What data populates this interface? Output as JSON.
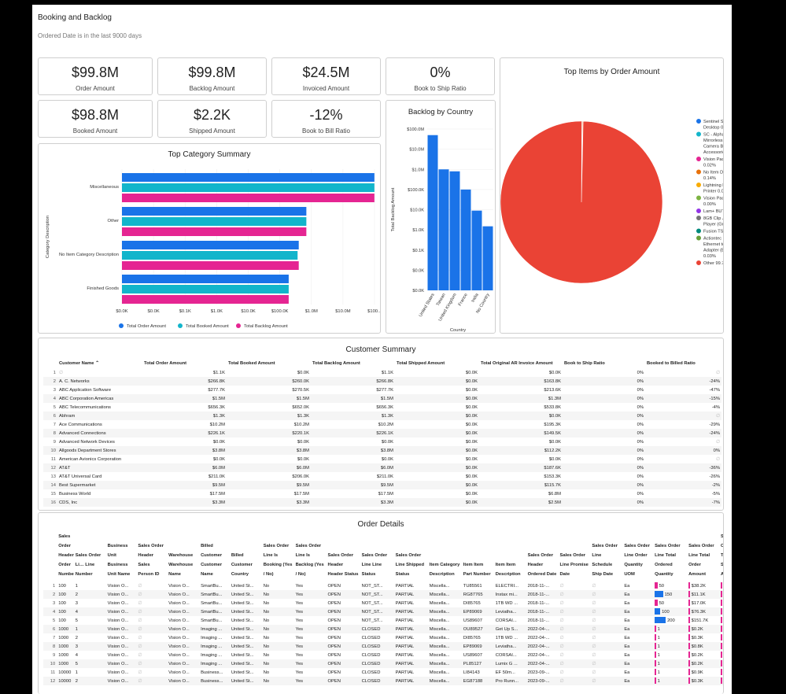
{
  "page": {
    "title": "Booking and Backlog",
    "subtitle": "Ordered Date is in the last 9000 days"
  },
  "kpis": [
    {
      "value": "$99.8M",
      "label": "Order Amount"
    },
    {
      "value": "$99.8M",
      "label": "Backlog Amount"
    },
    {
      "value": "$24.5M",
      "label": "Invoiced Amount"
    },
    {
      "value": "0%",
      "label": "Book to Ship Ratio"
    },
    {
      "value": "$98.8M",
      "label": "Booked Amount"
    },
    {
      "value": "$2.2K",
      "label": "Shipped Amount"
    },
    {
      "value": "-12%",
      "label": "Book to Bill Ratio"
    }
  ],
  "colors": {
    "order": "#1a73e8",
    "booked": "#12b5cb",
    "backlog": "#e52592",
    "pie_other": "#ea4335"
  },
  "chart_data": [
    {
      "type": "bar",
      "title": "Top Category Summary",
      "orientation": "horizontal",
      "ylabel": "Category Description",
      "xscale": "log",
      "categories": [
        "Miscellaneous",
        "Other",
        "No Item Category Description",
        "Finished Goods"
      ],
      "series": [
        {
          "name": "Total Order Amount",
          "values": [
            99000000,
            200000,
            100000,
            40000
          ]
        },
        {
          "name": "Total Booked Amount",
          "values": [
            99000000,
            200000,
            90000,
            40000
          ]
        },
        {
          "name": "Total Backlog Amount",
          "values": [
            99000000,
            200000,
            100000,
            40000
          ]
        }
      ],
      "xticks": [
        "$0.0K",
        "$0.0K",
        "$0.1K",
        "$1.0K",
        "$10.0K",
        "$100.0K",
        "$1.0M",
        "$10.0M",
        "$100..."
      ],
      "legend": "bottom"
    },
    {
      "type": "bar",
      "title": "Backlog by Country",
      "xlabel": "Country",
      "ylabel": "Total Backlog Amount",
      "yscale": "log",
      "categories": [
        "United States",
        "Taiwan",
        "United Kingdom",
        "France",
        "India",
        "No Country"
      ],
      "values": [
        50000000,
        1000000,
        800000,
        100000,
        9000,
        1500
      ],
      "yticks": [
        "$100.0M",
        "$10.0M",
        "$1.0M",
        "$100.0K",
        "$10.0K",
        "$1.0K",
        "$0.1K",
        "$0.0K",
        "$0.0K"
      ]
    },
    {
      "type": "pie",
      "title": "Top Items by Order Amount",
      "legend": "right",
      "slices": [
        {
          "label": "Sentinel Standard Desktop 0.04%",
          "value": 0.04,
          "color": "#1a73e8"
        },
        {
          "label": "SC - Alpha a7S II Mirrorless Digital Camera Body with Accessories Kit 0.02%",
          "value": 0.02,
          "color": "#12b5cb"
        },
        {
          "label": "Vision Pad - Bronze 0.02%",
          "value": 0.02,
          "color": "#e52592"
        },
        {
          "label": "No Item Description 0.14%",
          "value": 0.14,
          "color": "#e8710a"
        },
        {
          "label": "Lightning Laser Printer 0.00%",
          "value": 0.0,
          "color": "#f9ab00"
        },
        {
          "label": "Vision Pad - Silver 0.00%",
          "value": 0.0,
          "color": "#7cb342"
        },
        {
          "label": "Lam+ BUTTONS 0.00%",
          "value": 0.0,
          "color": "#9334e6"
        },
        {
          "label": "8GB Clip Jam MP3 Player (Green) 0.00%",
          "value": 0.0,
          "color": "#757575"
        },
        {
          "label": "Fusion TST Item 0.00%",
          "value": 0.0,
          "color": "#00897b"
        },
        {
          "label": "Actiontec MoCA 2.0 Ethernet to Coax Adapter (ECB6000S02) 0.03%",
          "value": 0.03,
          "color": "#689f38"
        },
        {
          "label": "Other 99.76%",
          "value": 99.76,
          "color": "#ea4335"
        }
      ]
    }
  ],
  "customer_summary": {
    "title": "Customer Summary",
    "headers": [
      "Customer Name",
      "Total Order Amount",
      "Total Booked Amount",
      "Total Backlog Amount",
      "Total Shipped Amount",
      "Total Original AR Invoice Amount",
      "Book to Ship Ratio",
      "Booked to Billed Ratio"
    ],
    "rows": [
      [
        "1",
        "∅",
        "$1.1K",
        "$0.0K",
        "$1.1K",
        "$0.0K",
        "$0.0K",
        "0%",
        "∅"
      ],
      [
        "2",
        "A. C. Networks",
        "$266.8K",
        "$260.0K",
        "$266.8K",
        "$0.0K",
        "$163.8K",
        "0%",
        "-24%"
      ],
      [
        "3",
        "ABC Application Software",
        "$277.7K",
        "$270.5K",
        "$277.7K",
        "$0.0K",
        "$213.6K",
        "0%",
        "-47%"
      ],
      [
        "4",
        "ABC Corporation Americas",
        "$1.5M",
        "$1.5M",
        "$1.5M",
        "$0.0K",
        "$1.3M",
        "0%",
        "-15%"
      ],
      [
        "5",
        "ABC Telecommunications",
        "$656.3K",
        "$652.0K",
        "$656.3K",
        "$0.0K",
        "$533.8K",
        "0%",
        "-4%"
      ],
      [
        "6",
        "Abhram",
        "$1.3K",
        "$1.3K",
        "$1.3K",
        "$0.0K",
        "$0.0K",
        "0%",
        "∅"
      ],
      [
        "7",
        "Ace Communications",
        "$10.2M",
        "$10.2M",
        "$10.2M",
        "$0.0K",
        "$195.3K",
        "0%",
        "-29%"
      ],
      [
        "8",
        "Advanced Connections",
        "$226.1K",
        "$220.1K",
        "$226.1K",
        "$0.0K",
        "$149.5K",
        "0%",
        "-24%"
      ],
      [
        "9",
        "Advanced Network Devices",
        "$0.0K",
        "$0.0K",
        "$0.0K",
        "$0.0K",
        "$0.0K",
        "0%",
        "∅"
      ],
      [
        "10",
        "Allgoods Department Stores",
        "$3.8M",
        "$3.8M",
        "$3.8M",
        "$0.0K",
        "$112.2K",
        "0%",
        "0%"
      ],
      [
        "11",
        "American Avionics Corporation",
        "$0.0K",
        "$0.0K",
        "$0.0K",
        "$0.0K",
        "$0.0K",
        "0%",
        "∅"
      ],
      [
        "12",
        "AT&T",
        "$6.0M",
        "$6.0M",
        "$6.0M",
        "$0.0K",
        "$187.6K",
        "0%",
        "-36%"
      ],
      [
        "13",
        "AT&T Universal Card",
        "$211.0K",
        "$206.0K",
        "$211.0K",
        "$0.0K",
        "$153.3K",
        "0%",
        "-26%"
      ],
      [
        "14",
        "Best Supermarket",
        "$9.5M",
        "$9.5M",
        "$9.5M",
        "$0.0K",
        "$115.7K",
        "0%",
        "-2%"
      ],
      [
        "15",
        "Business World",
        "$17.5M",
        "$17.5M",
        "$17.5M",
        "$0.0K",
        "$6.8M",
        "0%",
        "-5%"
      ],
      [
        "16",
        "CDS, Inc",
        "$3.3M",
        "$3.3M",
        "$3.3M",
        "$0.0K",
        "$2.5M",
        "0%",
        "-7%"
      ]
    ]
  },
  "order_details": {
    "title": "Order Details",
    "headers": [
      "Sales Order Header Order Number",
      "Sales Order Li… Line Number",
      "Business Unit Business Unit Name",
      "Sales Order Header Sales Person ID",
      "Warehouse Warehouse Name",
      "Billed Customer Customer Name",
      "Billed Customer Country",
      "Sales Order Line Is Booking (Yes / No)",
      "Sales Order Line Is Backlog (Yes / No)",
      "Sales Order Header Header Status",
      "Sales Order Line Line Status",
      "Sales Order Line Shipped Status",
      "Item Category Description",
      "Item Item Part Number",
      "Item Item Description",
      "Sales Order Header Ordered Date",
      "Sales Order Line Promise Date",
      "Sales Order Line Schedule Ship Date",
      "Sales Order Line Order Quantity UOM",
      "Sales Order Line Total Ordered Quantity",
      "Sales Order Line Total Order Amount",
      "Sal Ord Tot Shi Am"
    ],
    "rows": [
      [
        "1",
        "100",
        "1",
        "Vision O...",
        "∅",
        "Vision O...",
        "SmartBu...",
        "United St...",
        "No",
        "Yes",
        "OPEN",
        "NOT_ST...",
        "PARTIAL",
        "Miscella...",
        "TU85561",
        "ELECTRI...",
        "2018-11-...",
        "∅",
        "∅",
        "Ea",
        "50",
        "$38.2K",
        "$"
      ],
      [
        "2",
        "100",
        "2",
        "Vision O...",
        "∅",
        "Vision O...",
        "SmartBu...",
        "United St...",
        "No",
        "Yes",
        "OPEN",
        "NOT_ST...",
        "PARTIAL",
        "Miscella...",
        "RG87765",
        "Instax mi...",
        "2018-11-...",
        "∅",
        "∅",
        "Ea",
        "150",
        "$11.1K",
        "$"
      ],
      [
        "3",
        "100",
        "3",
        "Vision O...",
        "∅",
        "Vision O...",
        "SmartBu...",
        "United St...",
        "No",
        "Yes",
        "OPEN",
        "NOT_ST...",
        "PARTIAL",
        "Miscella...",
        "DI85765",
        "1TB WD ...",
        "2018-11-...",
        "∅",
        "∅",
        "Ea",
        "50",
        "$17.0K",
        "$"
      ],
      [
        "4",
        "100",
        "4",
        "Vision O...",
        "∅",
        "Vision O...",
        "SmartBu...",
        "United St...",
        "No",
        "Yes",
        "OPEN",
        "NOT_ST...",
        "PARTIAL",
        "Miscella...",
        "EP89069",
        "Leviatha...",
        "2018-11-...",
        "∅",
        "∅",
        "Ea",
        "100",
        "$76.3K",
        "$"
      ],
      [
        "5",
        "100",
        "5",
        "Vision O...",
        "∅",
        "Vision O...",
        "SmartBu...",
        "United St...",
        "No",
        "Yes",
        "OPEN",
        "NOT_ST...",
        "PARTIAL",
        "Miscella...",
        "US89607",
        "CORSAI...",
        "2018-11-...",
        "∅",
        "∅",
        "Ea",
        "200",
        "$151.7K",
        "$"
      ],
      [
        "6",
        "1000",
        "1",
        "Vision O...",
        "∅",
        "Vision O...",
        "Imaging ...",
        "United St...",
        "No",
        "Yes",
        "OPEN",
        "CLOSED",
        "PARTIAL",
        "Miscella...",
        "OU89527",
        "Get Up S...",
        "2022-04-...",
        "∅",
        "∅",
        "Ea",
        "1",
        "$0.2K",
        "$"
      ],
      [
        "7",
        "1000",
        "2",
        "Vision O...",
        "∅",
        "Vision O...",
        "Imaging ...",
        "United St...",
        "No",
        "Yes",
        "OPEN",
        "CLOSED",
        "PARTIAL",
        "Miscella...",
        "DI85765",
        "1TB WD ...",
        "2022-04-...",
        "∅",
        "∅",
        "Ea",
        "1",
        "$0.3K",
        "$"
      ],
      [
        "8",
        "1000",
        "3",
        "Vision O...",
        "∅",
        "Vision O...",
        "Imaging ...",
        "United St...",
        "No",
        "Yes",
        "OPEN",
        "CLOSED",
        "PARTIAL",
        "Miscella...",
        "EP89069",
        "Leviatha...",
        "2022-04-...",
        "∅",
        "∅",
        "Ea",
        "1",
        "$0.8K",
        "$"
      ],
      [
        "9",
        "1000",
        "4",
        "Vision O...",
        "∅",
        "Vision O...",
        "Imaging ...",
        "United St...",
        "No",
        "Yes",
        "OPEN",
        "CLOSED",
        "PARTIAL",
        "Miscella...",
        "US89607",
        "CORSAI...",
        "2022-04-...",
        "∅",
        "∅",
        "Ea",
        "1",
        "$0.2K",
        "$"
      ],
      [
        "10",
        "1000",
        "5",
        "Vision O...",
        "∅",
        "Vision O...",
        "Imaging ...",
        "United St...",
        "No",
        "Yes",
        "OPEN",
        "CLOSED",
        "PARTIAL",
        "Miscella...",
        "PL85127",
        "Lumix G ...",
        "2022-04-...",
        "∅",
        "∅",
        "Ea",
        "1",
        "$0.2K",
        "$"
      ],
      [
        "11",
        "10000",
        "1",
        "Vision O...",
        "∅",
        "Vision O...",
        "Business...",
        "United St...",
        "No",
        "Yes",
        "OPEN",
        "CLOSED",
        "PARTIAL",
        "Miscella...",
        "LI84143",
        "EF 50m...",
        "2023-09-...",
        "∅",
        "∅",
        "Ea",
        "1",
        "$0.9K",
        "$"
      ],
      [
        "12",
        "10000",
        "2",
        "Vision O...",
        "∅",
        "Vision O...",
        "Business...",
        "United St...",
        "No",
        "Yes",
        "OPEN",
        "CLOSED",
        "PARTIAL",
        "Miscella...",
        "EG87188",
        "Pro Runn...",
        "2023-09-...",
        "∅",
        "∅",
        "Ea",
        "1",
        "$0.3K",
        "$"
      ]
    ],
    "qty_max": 200
  }
}
